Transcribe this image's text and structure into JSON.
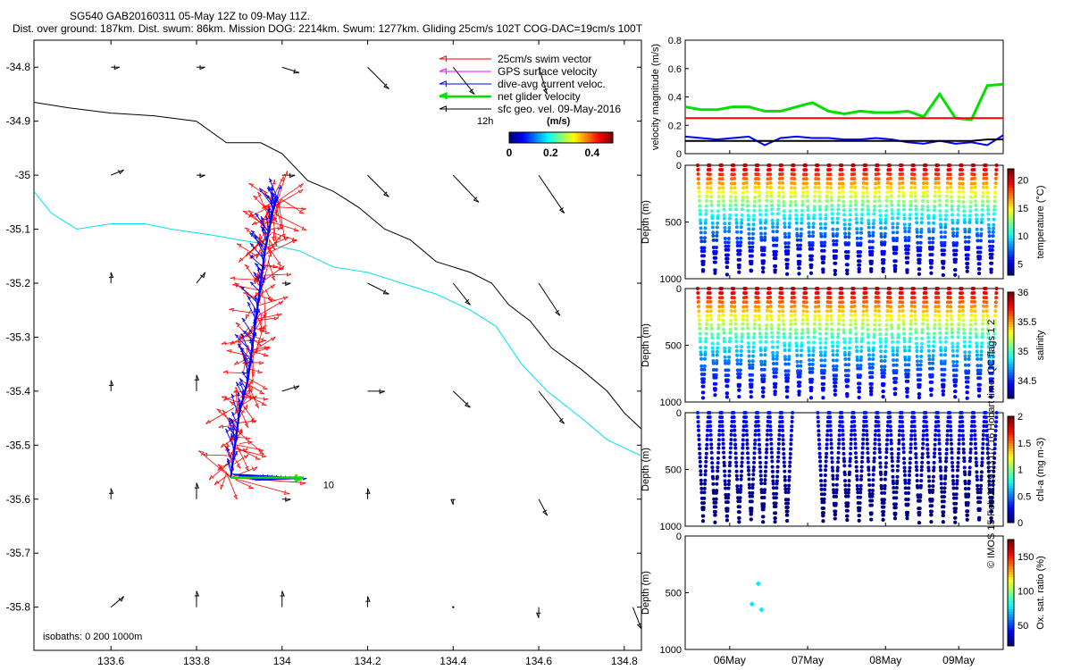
{
  "header": {
    "line1": "SG540 GAB20160311 05-May 12Z to 09-May 11Z.",
    "line2": "Dist. over ground: 187km. Dist. swum: 86km. Mission DOG: 2214km. Swum: 1277km. Gliding 25cm/s 102T COG-DAC=19cm/s 100T"
  },
  "credit": "© IMOS 15-Feb-2019 03:07:16 Hobart time. QC flags 1  2",
  "colors": {
    "swim": "#ff0000",
    "gps": "#ff00ff",
    "dac": "#0000ff",
    "net": "#00e000",
    "geo": "#000000",
    "isobath_200": "#00e0f0",
    "isobath_1000": "#000000"
  },
  "chart_data": [
    {
      "type": "scatter",
      "name": "map",
      "xlim": [
        133.42,
        134.84
      ],
      "ylim": [
        -35.88,
        -34.75
      ],
      "xticks": [
        133.6,
        133.8,
        134,
        134.2,
        134.4,
        134.6,
        134.8
      ],
      "xtick_labels": [
        "133.6",
        "133.8",
        "134",
        "134.2",
        "134.4",
        "134.6",
        "134.8"
      ],
      "yticks": [
        -34.8,
        -34.9,
        -35,
        -35.1,
        -35.2,
        -35.3,
        -35.4,
        -35.5,
        -35.6,
        -35.7,
        -35.8
      ],
      "ytick_labels": [
        "-34.8",
        "-34.9",
        "-35",
        "-35.1",
        "-35.2",
        "-35.3",
        "-35.4",
        "-35.5",
        "-35.6",
        "-35.7",
        "-35.8"
      ],
      "legend": {
        "placement": "top-right",
        "entries": [
          "25cm/s swim vector",
          "GPS surface velocity",
          "dive-avg current veloc.",
          "net glider velocity",
          "sfc geo. vel. 09-May-2016"
        ],
        "scale_label": "12h",
        "colorbar_title": "(m/s)",
        "colorbar_ticks": [
          "0",
          "0.2",
          "0.4"
        ],
        "colorbar_range": [
          0,
          0.5
        ]
      },
      "isobath_label": "isobaths: 0   200  1000m",
      "arrow_end_label": "10",
      "isobath_1000": [
        [
          133.42,
          -34.865
        ],
        [
          133.5,
          -34.875
        ],
        [
          133.6,
          -34.885
        ],
        [
          133.7,
          -34.89
        ],
        [
          133.8,
          -34.9
        ],
        [
          133.87,
          -34.94
        ],
        [
          133.95,
          -34.94
        ],
        [
          134.0,
          -34.96
        ],
        [
          134.06,
          -35.01
        ],
        [
          134.12,
          -35.03
        ],
        [
          134.18,
          -35.06
        ],
        [
          134.24,
          -35.1
        ],
        [
          134.3,
          -35.12
        ],
        [
          134.36,
          -35.16
        ],
        [
          134.44,
          -35.18
        ],
        [
          134.49,
          -35.2
        ],
        [
          134.53,
          -35.24
        ],
        [
          134.58,
          -35.27
        ],
        [
          134.63,
          -35.32
        ],
        [
          134.7,
          -35.36
        ],
        [
          134.76,
          -35.4
        ],
        [
          134.8,
          -35.44
        ],
        [
          134.84,
          -35.47
        ]
      ],
      "isobath_200": [
        [
          133.42,
          -35.03
        ],
        [
          133.46,
          -35.07
        ],
        [
          133.52,
          -35.1
        ],
        [
          133.6,
          -35.09
        ],
        [
          133.68,
          -35.09
        ],
        [
          133.74,
          -35.1
        ],
        [
          133.83,
          -35.11
        ],
        [
          133.9,
          -35.12
        ],
        [
          133.98,
          -35.13
        ],
        [
          134.04,
          -35.14
        ],
        [
          134.12,
          -35.17
        ],
        [
          134.2,
          -35.18
        ],
        [
          134.28,
          -35.2
        ],
        [
          134.36,
          -35.22
        ],
        [
          134.44,
          -35.25
        ],
        [
          134.5,
          -35.28
        ],
        [
          134.56,
          -35.35
        ],
        [
          134.62,
          -35.4
        ],
        [
          134.7,
          -35.45
        ],
        [
          134.76,
          -35.49
        ],
        [
          134.84,
          -35.52
        ]
      ],
      "geo_vectors": [
        [
          133.6,
          -34.8,
          0.02,
          0.0
        ],
        [
          133.8,
          -34.8,
          0.02,
          0.0
        ],
        [
          134.0,
          -34.8,
          0.04,
          -0.01
        ],
        [
          134.2,
          -34.8,
          0.05,
          -0.04
        ],
        [
          134.4,
          -34.8,
          0.05,
          -0.05
        ],
        [
          134.6,
          -34.8,
          0.02,
          -0.05
        ],
        [
          133.6,
          -35.0,
          0.03,
          0.01
        ],
        [
          133.8,
          -35.0,
          0.02,
          0.0
        ],
        [
          134.0,
          -35.0,
          0.03,
          0.0
        ],
        [
          134.2,
          -35.0,
          0.05,
          -0.04
        ],
        [
          134.4,
          -35.0,
          0.06,
          -0.05
        ],
        [
          134.6,
          -35.0,
          0.06,
          -0.07
        ],
        [
          133.6,
          -35.2,
          0.0,
          0.02
        ],
        [
          133.8,
          -35.2,
          0.02,
          0.02
        ],
        [
          134.0,
          -35.2,
          0.02,
          0.0
        ],
        [
          134.2,
          -35.2,
          0.05,
          -0.02
        ],
        [
          134.4,
          -35.2,
          0.04,
          -0.04
        ],
        [
          134.6,
          -35.2,
          0.05,
          -0.06
        ],
        [
          133.6,
          -35.4,
          0.0,
          0.02
        ],
        [
          133.8,
          -35.4,
          0.0,
          0.03
        ],
        [
          134.0,
          -35.4,
          0.04,
          0.01
        ],
        [
          134.2,
          -35.4,
          0.04,
          0.0
        ],
        [
          134.4,
          -35.4,
          0.04,
          -0.03
        ],
        [
          134.6,
          -35.4,
          0.06,
          -0.06
        ],
        [
          133.6,
          -35.6,
          0.0,
          0.02
        ],
        [
          133.8,
          -35.6,
          0.0,
          0.03
        ],
        [
          134.0,
          -35.6,
          0.02,
          0.0
        ],
        [
          134.2,
          -35.6,
          0.0,
          0.02
        ],
        [
          134.4,
          -35.6,
          0.0,
          -0.01
        ],
        [
          134.6,
          -35.6,
          0.02,
          -0.03
        ],
        [
          133.6,
          -35.8,
          0.03,
          0.02
        ],
        [
          133.8,
          -35.8,
          0.0,
          0.03
        ],
        [
          134.0,
          -35.8,
          0.0,
          0.03
        ],
        [
          134.2,
          -35.8,
          0.0,
          0.02
        ],
        [
          134.4,
          -35.8,
          0.0,
          0.0
        ],
        [
          134.6,
          -35.8,
          0.0,
          -0.02
        ],
        [
          134.82,
          -35.8,
          0.02,
          -0.04
        ]
      ],
      "glider_track": [
        [
          133.88,
          -35.56
        ],
        [
          133.89,
          -35.5
        ],
        [
          133.9,
          -35.44
        ],
        [
          133.92,
          -35.38
        ],
        [
          133.93,
          -35.32
        ],
        [
          133.94,
          -35.26
        ],
        [
          133.95,
          -35.2
        ],
        [
          133.96,
          -35.14
        ],
        [
          133.97,
          -35.1
        ],
        [
          133.98,
          -35.06
        ],
        [
          133.99,
          -35.04
        ]
      ],
      "net_velocity_arrow": [
        [
          133.88,
          -35.56
        ],
        [
          134.05,
          -35.56
        ]
      ]
    },
    {
      "type": "line",
      "name": "velocity",
      "ylabel": "velocity magnitude (m/s)",
      "ylim": [
        0,
        0.8
      ],
      "yticks": [
        0,
        0.2,
        0.4,
        0.6,
        0.8
      ],
      "ytick_labels": [
        "0",
        "0.2",
        "0.4",
        "0.6",
        "0.8"
      ],
      "x": [
        0,
        0.05,
        0.1,
        0.15,
        0.2,
        0.25,
        0.3,
        0.35,
        0.4,
        0.45,
        0.5,
        0.55,
        0.6,
        0.65,
        0.7,
        0.75,
        0.8,
        0.85,
        0.9,
        0.95,
        1.0
      ],
      "series": [
        {
          "color": "#00e000",
          "values": [
            0.33,
            0.31,
            0.31,
            0.33,
            0.33,
            0.3,
            0.3,
            0.33,
            0.36,
            0.3,
            0.28,
            0.3,
            0.29,
            0.29,
            0.3,
            0.26,
            0.42,
            0.25,
            0.24,
            0.48,
            0.49
          ]
        },
        {
          "color": "#ff0000",
          "values": [
            0.25,
            0.25,
            0.25,
            0.25,
            0.25,
            0.25,
            0.25,
            0.25,
            0.25,
            0.25,
            0.25,
            0.25,
            0.25,
            0.25,
            0.25,
            0.25,
            0.25,
            0.25,
            0.25,
            0.25,
            0.25
          ]
        },
        {
          "color": "#0000ff",
          "values": [
            0.12,
            0.11,
            0.1,
            0.11,
            0.12,
            0.06,
            0.11,
            0.12,
            0.11,
            0.11,
            0.1,
            0.1,
            0.11,
            0.1,
            0.08,
            0.07,
            0.09,
            0.07,
            0.08,
            0.06,
            0.13
          ]
        },
        {
          "color": "#000000",
          "values": [
            0.09,
            0.09,
            0.09,
            0.09,
            0.09,
            0.09,
            0.09,
            0.09,
            0.09,
            0.09,
            0.09,
            0.09,
            0.09,
            0.09,
            0.09,
            0.09,
            0.09,
            0.09,
            0.09,
            0.1,
            0.1
          ]
        }
      ]
    },
    {
      "type": "scatter",
      "name": "temperature",
      "ylabel": "Depth (m)",
      "ylim": [
        1000,
        0
      ],
      "yticks": [
        0,
        500,
        1000
      ],
      "ytick_labels": [
        "0",
        "500",
        "1000"
      ],
      "colorbar_label": "temperature (°C)",
      "colorbar_range": [
        3,
        22
      ],
      "colorbar_ticks": [
        "5",
        "10",
        "15",
        "20"
      ],
      "dives": 25,
      "max_depth": 970,
      "surface_value": 21,
      "bottom_value": 4
    },
    {
      "type": "scatter",
      "name": "salinity",
      "ylabel": "Depth (m)",
      "ylim": [
        1000,
        0
      ],
      "yticks": [
        0,
        500,
        1000
      ],
      "ytick_labels": [
        "0",
        "500",
        "1000"
      ],
      "colorbar_label": "salinity",
      "colorbar_range": [
        34.2,
        36.0
      ],
      "colorbar_ticks": [
        "34.5",
        "35",
        "35.5",
        "36"
      ],
      "dives": 25,
      "max_depth": 970,
      "surface_value": 35.9,
      "bottom_value": 34.4
    },
    {
      "type": "scatter",
      "name": "chlorophyll",
      "ylabel": "Depth (m)",
      "ylim": [
        1000,
        0
      ],
      "yticks": [
        0,
        500,
        1000
      ],
      "ytick_labels": [
        "0",
        "500",
        "1000"
      ],
      "colorbar_label": "chl-a (mg m-3)",
      "colorbar_range": [
        0,
        2
      ],
      "colorbar_ticks": [
        "0",
        "0.5",
        "1",
        "1.5",
        "2"
      ],
      "dives": 25,
      "max_depth": 970,
      "surface_value": 0.3,
      "bottom_value": 0.0
    },
    {
      "type": "scatter",
      "name": "oxygen",
      "ylabel": "Depth (m)",
      "ylim": [
        1000,
        0
      ],
      "yticks": [
        0,
        500,
        1000
      ],
      "ytick_labels": [
        "0",
        "500",
        "1000"
      ],
      "xtick_labels": [
        "06May",
        "07May",
        "08May",
        "09May"
      ],
      "colorbar_label": "Ox. sat. ratio (%)",
      "colorbar_range": [
        20,
        175
      ],
      "colorbar_ticks": [
        "50",
        "100",
        "150"
      ],
      "points": [
        [
          0.23,
          420
        ],
        [
          0.21,
          600
        ],
        [
          0.24,
          650
        ]
      ],
      "point_value": 75
    }
  ]
}
